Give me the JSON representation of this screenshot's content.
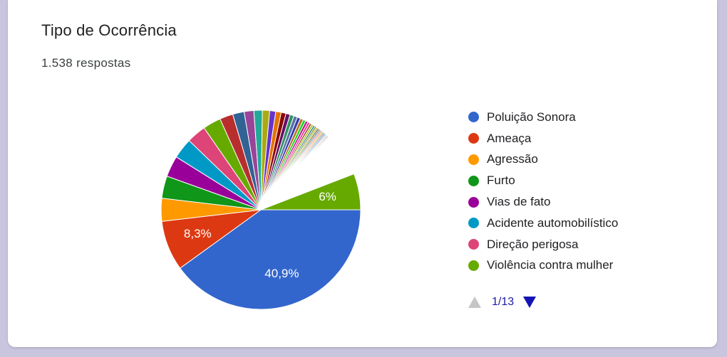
{
  "card": {
    "title": "Tipo de Ocorrência",
    "subtitle": "1.538 respostas"
  },
  "chart_data": {
    "type": "pie",
    "title": "Tipo de Ocorrência",
    "total_responses": 1538,
    "slices": [
      {
        "label": "Poluição Sonora",
        "value": 40.9,
        "color": "#3366cc",
        "data_label": "40,9%"
      },
      {
        "label": "Ameaça",
        "value": 8.3,
        "color": "#dc3912",
        "data_label": "8,3%"
      },
      {
        "label": "Agressão",
        "value": 3.8,
        "color": "#ff9900",
        "data_label": ""
      },
      {
        "label": "Furto",
        "value": 3.7,
        "color": "#109618",
        "data_label": ""
      },
      {
        "label": "Vias de fato",
        "value": 3.5,
        "color": "#990099",
        "data_label": ""
      },
      {
        "label": "Acidente automobilístico",
        "value": 3.4,
        "color": "#0099c6",
        "data_label": ""
      },
      {
        "label": "Direção perigosa",
        "value": 3.2,
        "color": "#dd4477",
        "data_label": ""
      },
      {
        "label": "",
        "value": 3.0,
        "color": "#66aa00",
        "data_label": ""
      },
      {
        "label": "",
        "value": 2.2,
        "color": "#b82e2e",
        "data_label": ""
      },
      {
        "label": "",
        "value": 1.9,
        "color": "#316395",
        "data_label": ""
      },
      {
        "label": "",
        "value": 1.6,
        "color": "#994499",
        "data_label": ""
      },
      {
        "label": "",
        "value": 1.4,
        "color": "#22aa99",
        "data_label": ""
      },
      {
        "label": "",
        "value": 1.2,
        "color": "#aaaa11",
        "data_label": ""
      },
      {
        "label": "",
        "value": 1.0,
        "color": "#6633cc",
        "data_label": ""
      },
      {
        "label": "",
        "value": 0.9,
        "color": "#e67300",
        "data_label": ""
      },
      {
        "label": "",
        "value": 0.8,
        "color": "#8b0707",
        "data_label": ""
      },
      {
        "label": "",
        "value": 0.7,
        "color": "#651067",
        "data_label": ""
      },
      {
        "label": "",
        "value": 0.65,
        "color": "#329262",
        "data_label": ""
      },
      {
        "label": "",
        "value": 0.6,
        "color": "#5574a6",
        "data_label": ""
      },
      {
        "label": "",
        "value": 0.55,
        "color": "#3b3eac",
        "data_label": ""
      },
      {
        "label": "",
        "value": 0.5,
        "color": "#b77322",
        "data_label": ""
      },
      {
        "label": "",
        "value": 0.45,
        "color": "#16d620",
        "data_label": ""
      },
      {
        "label": "",
        "value": 0.4,
        "color": "#b91383",
        "data_label": ""
      },
      {
        "label": "",
        "value": 0.38,
        "color": "#f4359e",
        "data_label": ""
      },
      {
        "label": "",
        "value": 0.35,
        "color": "#9c5935",
        "data_label": ""
      },
      {
        "label": "",
        "value": 0.32,
        "color": "#a9c413",
        "data_label": ""
      },
      {
        "label": "",
        "value": 0.3,
        "color": "#2a778d",
        "data_label": ""
      },
      {
        "label": "",
        "value": 0.28,
        "color": "#668d1c",
        "data_label": ""
      },
      {
        "label": "",
        "value": 0.26,
        "color": "#bea413",
        "data_label": ""
      },
      {
        "label": "",
        "value": 0.24,
        "color": "#0c5922",
        "data_label": ""
      },
      {
        "label": "",
        "value": 0.22,
        "color": "#743411",
        "data_label": ""
      },
      {
        "label": "",
        "value": 0.2,
        "color": "#3366cc",
        "data_label": ""
      },
      {
        "label": "",
        "value": 0.2,
        "color": "#dc3912",
        "data_label": ""
      },
      {
        "label": "",
        "value": 0.2,
        "color": "#ff9900",
        "data_label": ""
      },
      {
        "label": "",
        "value": 0.2,
        "color": "#109618",
        "data_label": ""
      },
      {
        "label": "",
        "value": 0.2,
        "color": "#990099",
        "data_label": ""
      },
      {
        "label": "",
        "value": 0.2,
        "color": "#0099c6",
        "data_label": ""
      },
      {
        "label": "",
        "value": 0.15,
        "color": "#dd4477",
        "data_label": ""
      },
      {
        "label": "",
        "value": 0.15,
        "color": "#66aa00",
        "data_label": ""
      },
      {
        "label": "",
        "value": 0.15,
        "color": "#b82e2e",
        "data_label": ""
      },
      {
        "label": "",
        "value": 0.15,
        "color": "#316395",
        "data_label": ""
      },
      {
        "label": "",
        "value": 7.4,
        "color": "#ffffff",
        "data_label": ""
      },
      {
        "label": "Violência contra mulher",
        "value": 6.0,
        "color": "#66aa00",
        "data_label": "6%"
      }
    ],
    "legend_position": "right"
  },
  "legend": {
    "items": [
      {
        "label": "Poluição Sonora",
        "color": "#3366cc"
      },
      {
        "label": "Ameaça",
        "color": "#dc3912"
      },
      {
        "label": "Agressão",
        "color": "#ff9900"
      },
      {
        "label": "Furto",
        "color": "#109618"
      },
      {
        "label": "Vias de fato",
        "color": "#990099"
      },
      {
        "label": "Acidente automobilístico",
        "color": "#0099c6"
      },
      {
        "label": "Direção perigosa",
        "color": "#dd4477"
      },
      {
        "label": "Violência contra mulher",
        "color": "#66aa00"
      }
    ],
    "pager_text": "1/13"
  }
}
